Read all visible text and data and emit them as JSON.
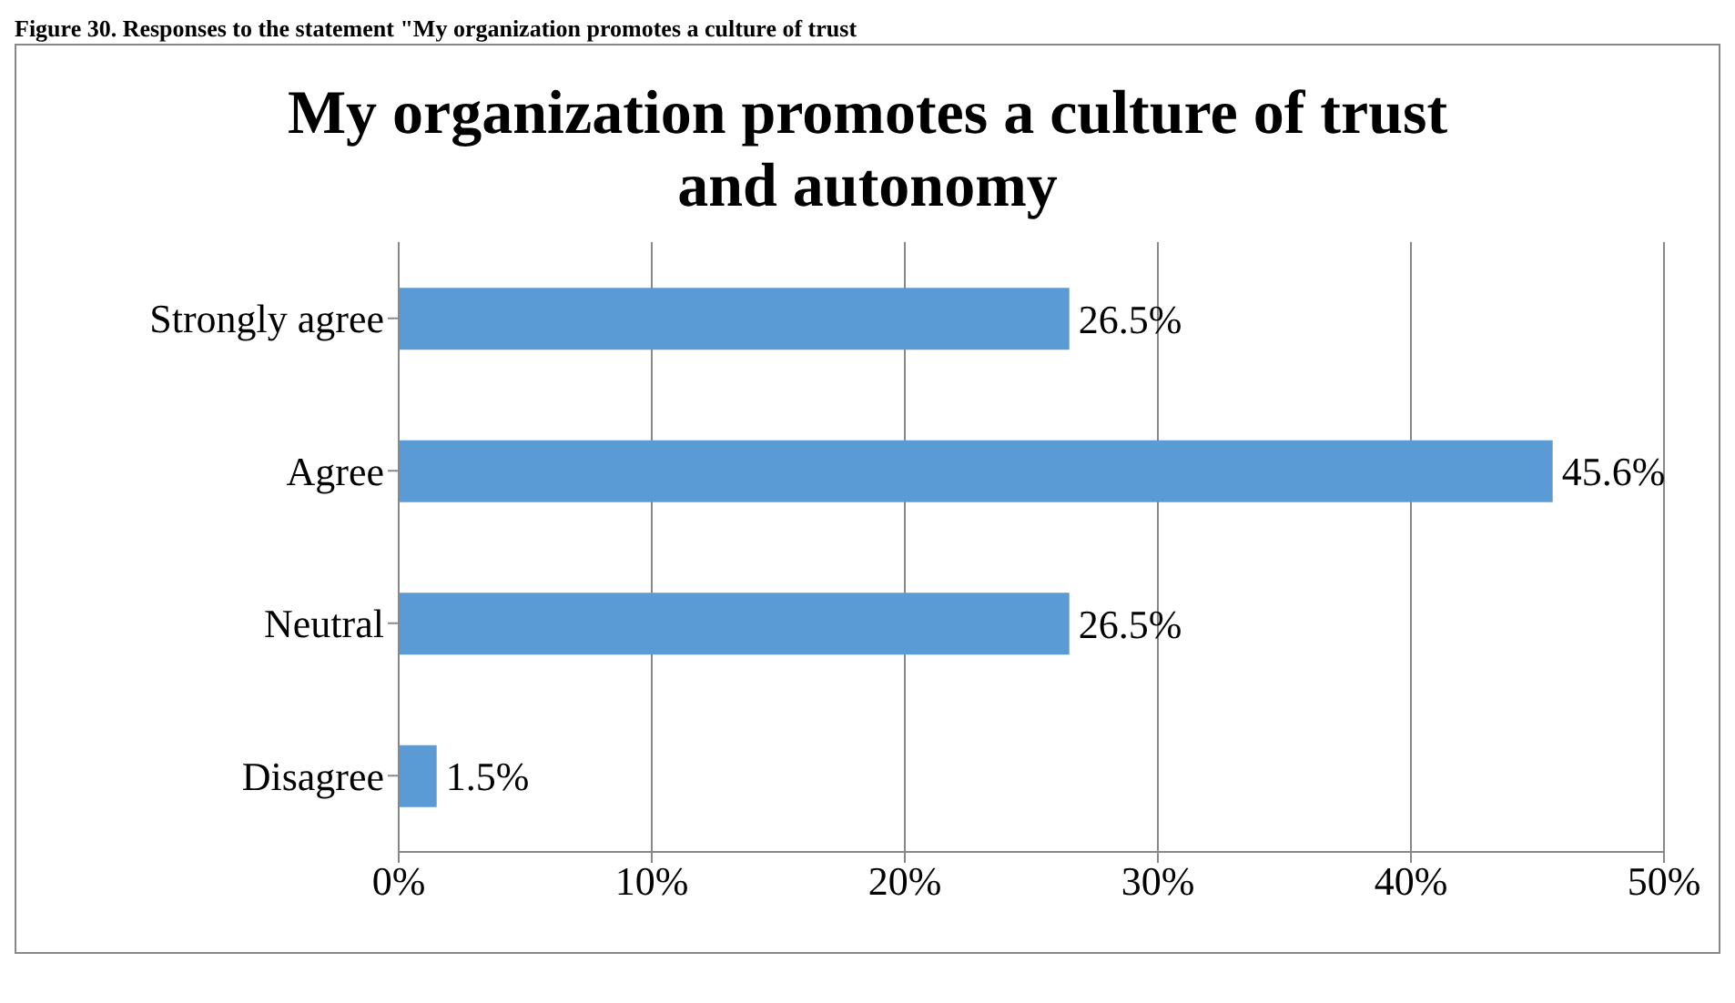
{
  "chart_data": {
    "type": "bar",
    "orientation": "horizontal",
    "title": "My organization promotes a culture of trust and autonomy",
    "annotations": [
      "Figure 30. Responses to the statement \"My organization promotes a culture of trust"
    ],
    "categories": [
      "Strongly agree",
      "Agree",
      "Neutral",
      "Disagree"
    ],
    "values": [
      26.5,
      45.6,
      26.5,
      1.5
    ],
    "color": "#5b9bd5",
    "value_labels": [
      "26.5%",
      "45.6%",
      "26.5%",
      "1.5%"
    ],
    "xlim": [
      0,
      50
    ],
    "xticks": [
      {
        "value": 0,
        "label": "0%"
      },
      {
        "value": 10,
        "label": "10%"
      },
      {
        "value": 20,
        "label": "20%"
      },
      {
        "value": 30,
        "label": "30%"
      },
      {
        "value": 40,
        "label": "40%"
      },
      {
        "value": 50,
        "label": "50%"
      }
    ],
    "grid": "x",
    "legend": false
  }
}
